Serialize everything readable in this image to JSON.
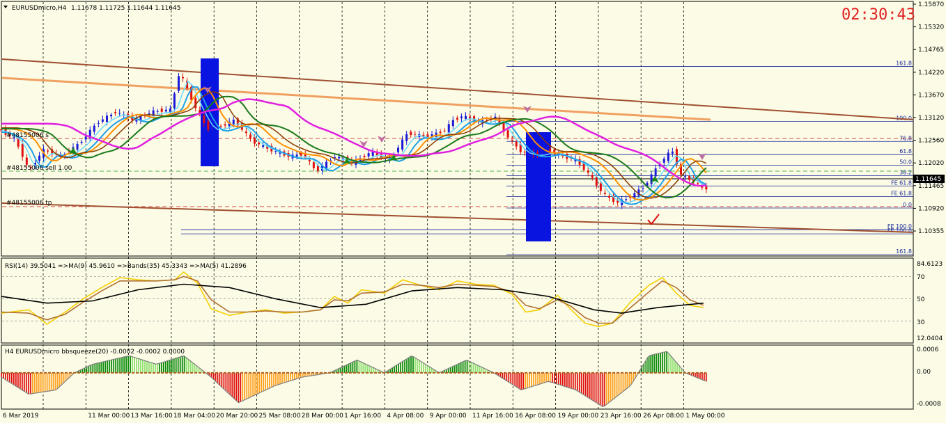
{
  "window": {
    "symbol_title": "EURUSDmicro,H4",
    "ohlc": "1.11678 1.11725 1.11644 1.11645",
    "timer": "02:30:43"
  },
  "colors": {
    "background": "#fbfbe6",
    "bull_candle": "#1a1ad8",
    "bear_candle": "#e01010",
    "ma_fast": "#1ea0e8",
    "ma_mid": "#66ddff",
    "ma_orange": "#ff9000",
    "ma_dark": "#8a3a00",
    "ma_green": "#1b7a1b",
    "ma_magenta": "#e020e0",
    "trend_light": "#f0a060",
    "trend_dark": "#a05030",
    "blue_zone": "#0a14e0",
    "rsi_line": "#f5d000",
    "rsi_signal": "#b07030",
    "rsi_bands": "#000000",
    "squeeze_green_dark": "#0a8a0a",
    "squeeze_green_light": "#8ee070",
    "squeeze_red_dark": "#e01010",
    "squeeze_orange": "#ffa020",
    "current_price_label_bg": "#000000"
  },
  "chart_data": [
    {
      "type": "candlestick",
      "panel": "price",
      "symbol": "EURUSDmicro",
      "timeframe": "H4",
      "ylim": [
        1.1008,
        1.1602
      ],
      "y_ticks": [
        "1.15870",
        "1.15320",
        "1.14765",
        "1.14220",
        "1.13670",
        "1.13120",
        "1.12560",
        "1.12020",
        "1.11465",
        "1.10920",
        "1.10355"
      ],
      "current_price": "1.11645",
      "x_ticks": [
        "6 Mar 2019",
        "11 Mar 00:00",
        "13 Mar 16:00",
        "18 Mar 04:00",
        "20 Mar 20:00",
        "25 Mar 08:00",
        "28 Mar 00:00",
        "1 Apr 16:00",
        "4 Apr 08:00",
        "9 Apr 00:00",
        "11 Apr 16:00",
        "16 Apr 08:00",
        "19 Apr 00:00",
        "23 Apr 16:00",
        "26 Apr 08:00",
        "1 May 00:00"
      ],
      "price_path": [
        [
          0,
          1.1305
        ],
        [
          0.02,
          1.128
        ],
        [
          0.035,
          1.1205
        ],
        [
          0.05,
          1.1255
        ],
        [
          0.07,
          1.124
        ],
        [
          0.09,
          1.127
        ],
        [
          0.11,
          1.132
        ],
        [
          0.13,
          1.1345
        ],
        [
          0.15,
          1.1325
        ],
        [
          0.17,
          1.1345
        ],
        [
          0.19,
          1.135
        ],
        [
          0.2,
          1.144
        ],
        [
          0.215,
          1.1365
        ],
        [
          0.23,
          1.1305
        ],
        [
          0.245,
          1.131
        ],
        [
          0.26,
          1.1325
        ],
        [
          0.28,
          1.1275
        ],
        [
          0.3,
          1.1255
        ],
        [
          0.32,
          1.124
        ],
        [
          0.335,
          1.1245
        ],
        [
          0.35,
          1.1205
        ],
        [
          0.37,
          1.124
        ],
        [
          0.39,
          1.1225
        ],
        [
          0.41,
          1.125
        ],
        [
          0.43,
          1.123
        ],
        [
          0.45,
          1.1295
        ],
        [
          0.47,
          1.1285
        ],
        [
          0.49,
          1.13
        ],
        [
          0.5,
          1.1325
        ],
        [
          0.51,
          1.1335
        ],
        [
          0.53,
          1.132
        ],
        [
          0.545,
          1.1335
        ],
        [
          0.56,
          1.1285
        ],
        [
          0.575,
          1.125
        ],
        [
          0.59,
          1.1245
        ],
        [
          0.605,
          1.1255
        ],
        [
          0.62,
          1.124
        ],
        [
          0.635,
          1.123
        ],
        [
          0.65,
          1.1195
        ],
        [
          0.665,
          1.115
        ],
        [
          0.68,
          1.113
        ],
        [
          0.695,
          1.1145
        ],
        [
          0.71,
          1.117
        ],
        [
          0.725,
          1.122
        ],
        [
          0.74,
          1.1255
        ],
        [
          0.75,
          1.1195
        ],
        [
          0.765,
          1.118
        ],
        [
          0.773,
          1.11645
        ]
      ],
      "trendlines": {
        "count": 3,
        "colors": [
          "trend_light",
          "trend_dark",
          "trend_dark"
        ]
      },
      "moving_averages": [
        "ma_fast",
        "ma_mid",
        "ma_orange",
        "ma_dark",
        "ma_green",
        "ma_magenta"
      ],
      "fibonacci_levels": [
        {
          "label": "161.8",
          "price": 1.1452
        },
        {
          "label": "100.0",
          "price": 1.1322
        },
        {
          "label": "76.8",
          "price": 1.1275
        },
        {
          "label": "61.8",
          "price": 1.1244
        },
        {
          "label": "50.0",
          "price": 1.1219
        },
        {
          "label": "38.2",
          "price": 1.1194
        },
        {
          "label": "FE 61.8",
          "price": 1.117
        },
        {
          "label": "FE 61.8",
          "price": 1.1145
        },
        {
          "label": "0.0",
          "price": 1.1118
        },
        {
          "label": "FE 100.0",
          "price": 1.1067
        },
        {
          "label": "FE 100.0",
          "price": 1.1057
        },
        {
          "label": "161.8",
          "price": 1.1008
        }
      ],
      "order_labels": [
        "#48155006 s",
        "#48155006 sell 1.00",
        "#48155006 tp"
      ]
    },
    {
      "type": "line",
      "panel": "rsi",
      "title": "RSI(14) 39.5041 =>MA(9) 45.9610 =>Bands(35) 45.3343 =>MA(5) 41.2896",
      "ylim": [
        12.0404,
        84.6123
      ],
      "y_ticks": [
        "84.6123",
        "70",
        "50",
        "30",
        "12.0404"
      ],
      "series": [
        {
          "color": "rsi_line",
          "values": [
            [
              0,
              37
            ],
            [
              0.03,
              40
            ],
            [
              0.05,
              27
            ],
            [
              0.07,
              38
            ],
            [
              0.09,
              50
            ],
            [
              0.11,
              60
            ],
            [
              0.13,
              69
            ],
            [
              0.15,
              67
            ],
            [
              0.17,
              66
            ],
            [
              0.19,
              67
            ],
            [
              0.2,
              74
            ],
            [
              0.215,
              64
            ],
            [
              0.23,
              41
            ],
            [
              0.25,
              35
            ],
            [
              0.27,
              38
            ],
            [
              0.29,
              40
            ],
            [
              0.31,
              37
            ],
            [
              0.33,
              38
            ],
            [
              0.35,
              40
            ],
            [
              0.365,
              52
            ],
            [
              0.38,
              46
            ],
            [
              0.395,
              58
            ],
            [
              0.42,
              55
            ],
            [
              0.44,
              67
            ],
            [
              0.46,
              62
            ],
            [
              0.48,
              58
            ],
            [
              0.5,
              66
            ],
            [
              0.52,
              63
            ],
            [
              0.54,
              62
            ],
            [
              0.56,
              54
            ],
            [
              0.575,
              38
            ],
            [
              0.59,
              40
            ],
            [
              0.61,
              53
            ],
            [
              0.625,
              40
            ],
            [
              0.64,
              28
            ],
            [
              0.655,
              25
            ],
            [
              0.67,
              28
            ],
            [
              0.69,
              47
            ],
            [
              0.71,
              62
            ],
            [
              0.725,
              69
            ],
            [
              0.74,
              55
            ],
            [
              0.755,
              44
            ],
            [
              0.77,
              42
            ]
          ]
        },
        {
          "color": "rsi_signal",
          "values": [
            [
              0,
              38
            ],
            [
              0.03,
              37
            ],
            [
              0.05,
              31
            ],
            [
              0.07,
              36
            ],
            [
              0.09,
              47
            ],
            [
              0.11,
              57
            ],
            [
              0.13,
              66
            ],
            [
              0.15,
              66
            ],
            [
              0.17,
              66
            ],
            [
              0.19,
              67
            ],
            [
              0.2,
              70
            ],
            [
              0.215,
              66
            ],
            [
              0.23,
              49
            ],
            [
              0.25,
              38
            ],
            [
              0.27,
              38
            ],
            [
              0.29,
              39
            ],
            [
              0.31,
              38
            ],
            [
              0.33,
              38
            ],
            [
              0.35,
              40
            ],
            [
              0.365,
              49
            ],
            [
              0.38,
              48
            ],
            [
              0.395,
              55
            ],
            [
              0.42,
              56
            ],
            [
              0.44,
              63
            ],
            [
              0.46,
              62
            ],
            [
              0.48,
              60
            ],
            [
              0.5,
              63
            ],
            [
              0.52,
              62
            ],
            [
              0.54,
              61
            ],
            [
              0.56,
              56
            ],
            [
              0.575,
              44
            ],
            [
              0.59,
              41
            ],
            [
              0.61,
              49
            ],
            [
              0.625,
              43
            ],
            [
              0.64,
              33
            ],
            [
              0.655,
              28
            ],
            [
              0.67,
              28
            ],
            [
              0.69,
              42
            ],
            [
              0.71,
              56
            ],
            [
              0.725,
              66
            ],
            [
              0.74,
              60
            ],
            [
              0.755,
              49
            ],
            [
              0.77,
              44
            ]
          ]
        },
        {
          "color": "rsi_bands",
          "values": [
            [
              0,
              52
            ],
            [
              0.05,
              46
            ],
            [
              0.1,
              48
            ],
            [
              0.15,
              58
            ],
            [
              0.2,
              63
            ],
            [
              0.25,
              60
            ],
            [
              0.3,
              50
            ],
            [
              0.35,
              42
            ],
            [
              0.4,
              45
            ],
            [
              0.45,
              57
            ],
            [
              0.5,
              60
            ],
            [
              0.55,
              58
            ],
            [
              0.6,
              52
            ],
            [
              0.65,
              40
            ],
            [
              0.68,
              37
            ],
            [
              0.72,
              42
            ],
            [
              0.77,
              46
            ]
          ]
        }
      ]
    },
    {
      "type": "bar",
      "panel": "bbsqueeze",
      "title": "H4 EURUSDmicro bbsqueeze(20) -0.0002 -0.0002 0.0000",
      "ylim": [
        -0.0008,
        0.0006
      ],
      "y_ticks": [
        "0.0006",
        "0.00",
        "-0.0008"
      ],
      "profile": [
        [
          0,
          -0.0001
        ],
        [
          0.03,
          -0.0005
        ],
        [
          0.06,
          -0.0004
        ],
        [
          0.08,
          0.0
        ],
        [
          0.1,
          0.0002
        ],
        [
          0.14,
          0.0004
        ],
        [
          0.17,
          0.0002
        ],
        [
          0.2,
          0.0004
        ],
        [
          0.23,
          -0.0001
        ],
        [
          0.26,
          -0.0007
        ],
        [
          0.3,
          -0.0003
        ],
        [
          0.33,
          -0.0001
        ],
        [
          0.36,
          0.0
        ],
        [
          0.39,
          0.0003
        ],
        [
          0.42,
          0.0
        ],
        [
          0.45,
          0.0004
        ],
        [
          0.48,
          0.0
        ],
        [
          0.51,
          0.0003
        ],
        [
          0.54,
          0.0
        ],
        [
          0.57,
          -0.0004
        ],
        [
          0.6,
          -0.0002
        ],
        [
          0.63,
          -0.0004
        ],
        [
          0.66,
          -0.0008
        ],
        [
          0.69,
          -0.0003
        ],
        [
          0.71,
          0.0004
        ],
        [
          0.73,
          0.0005
        ],
        [
          0.75,
          0.0
        ],
        [
          0.773,
          -0.0002
        ]
      ]
    }
  ]
}
